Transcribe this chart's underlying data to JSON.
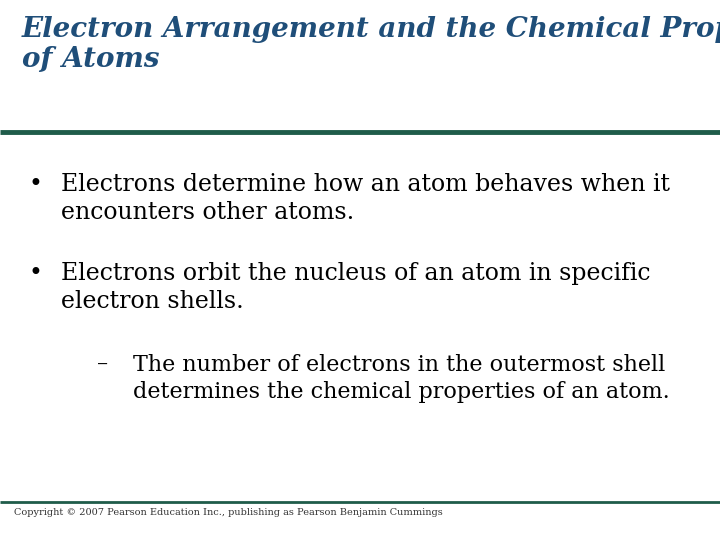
{
  "title_line1": "Electron Arrangement and the Chemical Properties",
  "title_line2": "of Atoms",
  "title_color": "#1F4E79",
  "title_fontsize": 20,
  "separator_color": "#1F5C4A",
  "bg_color": "#FFFFFF",
  "bullet_color": "#000000",
  "bullet_fontsize": 17,
  "sub_bullet_fontsize": 16,
  "bullet1_line1": "Electrons determine how an atom behaves when it",
  "bullet1_line2": "encounters other atoms.",
  "bullet2_line1": "Electrons orbit the nucleus of an atom in specific",
  "bullet2_line2": "electron shells.",
  "sub_bullet_line1": "The number of electrons in the outermost shell",
  "sub_bullet_line2": "determines the chemical properties of an atom.",
  "footer_text": "Copyright © 2007 Pearson Education Inc., publishing as Pearson Benjamin Cummings",
  "footer_fontsize": 7,
  "footer_color": "#333333"
}
